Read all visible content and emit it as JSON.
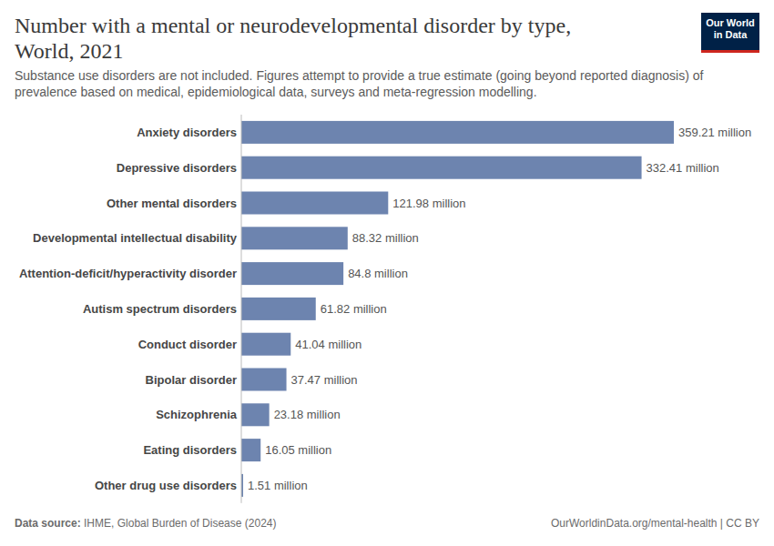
{
  "chart_data": {
    "type": "bar",
    "orientation": "horizontal",
    "title": "Number with a mental or neurodevelopmental disorder by type, World, 2021",
    "subtitle": "Substance use disorders are not included. Figures attempt to provide a true estimate (going beyond reported diagnosis) of prevalence based on medical, epidemiological data, surveys and meta-regression modelling.",
    "logo": [
      "Our World",
      "in Data"
    ],
    "source_label": "Data source:",
    "source": "IHME, Global Burden of Disease (2024)",
    "url": "OurWorldinData.org/mental-health | CC BY",
    "categories": [
      "Anxiety disorders",
      "Depressive disorders",
      "Other mental disorders",
      "Developmental intellectual disability",
      "Attention-deficit/hyperactivity disorder",
      "Autism spectrum disorders",
      "Conduct disorder",
      "Bipolar disorder",
      "Schizophrenia",
      "Eating disorders",
      "Other drug use disorders"
    ],
    "values": [
      359.21,
      332.41,
      121.98,
      88.32,
      84.8,
      61.82,
      41.04,
      37.47,
      23.18,
      16.05,
      1.51
    ],
    "value_labels": [
      "359.21 million",
      "332.41 million",
      "121.98 million",
      "88.32 million",
      "84.8 million",
      "61.82 million",
      "41.04 million",
      "37.47 million",
      "23.18 million",
      "16.05 million",
      "1.51 million"
    ],
    "color": "#6d84af",
    "xlim": [
      0,
      359.21
    ],
    "data_labels": true,
    "tick_labels": "y",
    "grid": false
  }
}
